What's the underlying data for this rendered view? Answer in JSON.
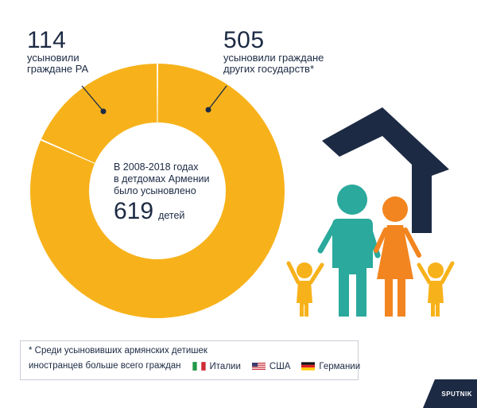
{
  "chart_data": {
    "type": "pie",
    "style": "donut",
    "segments": [
      {
        "label": "усыновили граждане РА",
        "value": 114
      },
      {
        "label": "усыновили граждане других государств*",
        "value": 505
      }
    ],
    "total": 619
  },
  "stats": {
    "local": {
      "value": "114",
      "line1": "усыновили",
      "line2": "граждане РА"
    },
    "foreign": {
      "value": "505",
      "line1": "усыновили граждане",
      "line2": "других государств*"
    }
  },
  "center": {
    "line1": "В 2008-2018 годах",
    "line2": "в детдомах Армении",
    "line3": "было усыновлено",
    "total": "619",
    "unit": "детей"
  },
  "footnote": {
    "line1": "* Среди усыновивших армянских детишек",
    "line2": "иностранцев больше всего граждан",
    "countries": [
      {
        "name": "Италии",
        "flag": "italy-flag-icon"
      },
      {
        "name": "США",
        "flag": "usa-flag-icon"
      },
      {
        "name": "Германии",
        "flag": "germany-flag-icon"
      }
    ]
  },
  "brand": {
    "name": "SPUTNIK"
  },
  "colors": {
    "donut": "#f7b21b",
    "divider": "#ffffff",
    "text": "#1c2a44",
    "roof": "#1c2a44",
    "teal": "#2aa99c",
    "orange": "#f2851f",
    "child": "#f7b21b"
  }
}
